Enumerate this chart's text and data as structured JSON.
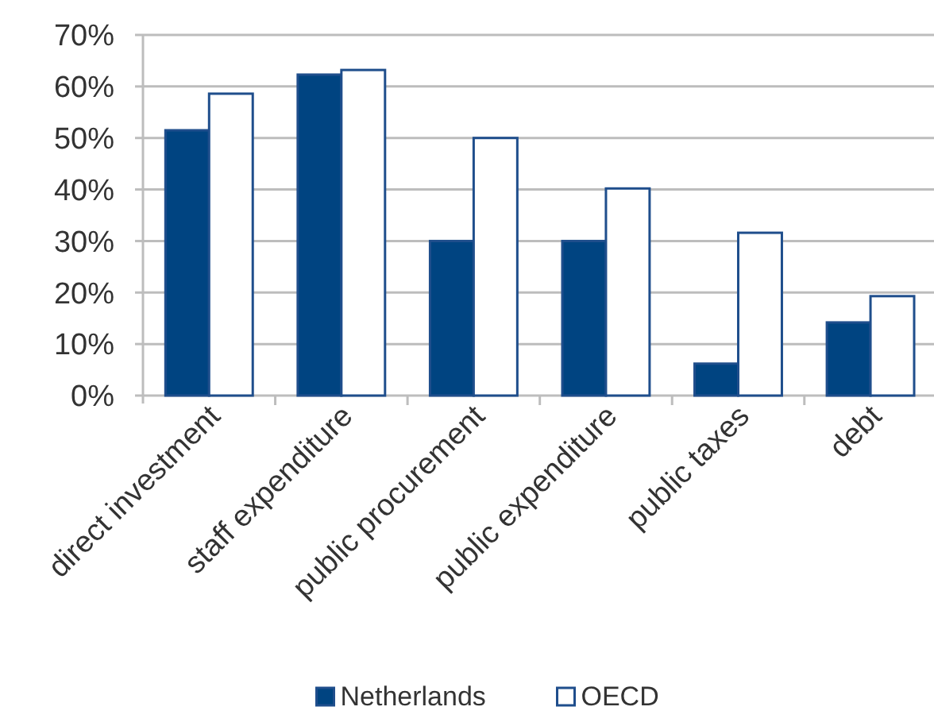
{
  "chart_data": {
    "type": "bar",
    "categories": [
      "direct investment",
      "staff expenditure",
      "public procurement",
      "public expenditure",
      "public taxes",
      "debt"
    ],
    "series": [
      {
        "name": "Netherlands",
        "color": "#004481",
        "values": [
          51.5,
          62.3,
          30,
          30,
          6.2,
          14.2
        ]
      },
      {
        "name": "OECD",
        "color": "#ffffff",
        "values": [
          58.6,
          63.2,
          50,
          40.2,
          31.6,
          19.3
        ]
      }
    ],
    "ylim": [
      0,
      70
    ],
    "yticks": [
      {
        "value": 0,
        "label": "0%"
      },
      {
        "value": 10,
        "label": "10%"
      },
      {
        "value": 20,
        "label": "20%"
      },
      {
        "value": 30,
        "label": "30%"
      },
      {
        "value": 40,
        "label": "40%"
      },
      {
        "value": 50,
        "label": "50%"
      },
      {
        "value": 60,
        "label": "60%"
      },
      {
        "value": 70,
        "label": "70%"
      }
    ],
    "grid": "y",
    "legend": "bottom"
  }
}
